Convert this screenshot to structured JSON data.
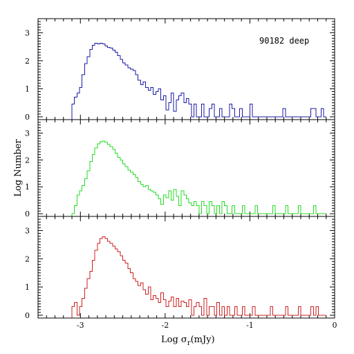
{
  "chart_data": {
    "type": "histogram",
    "annotation": "90182 deep",
    "xlabel": "Log σ",
    "xlabel_sub": "r",
    "xlabel_unit": "(mJy)",
    "ylabel": "Log Number",
    "xlim": [
      -3.5,
      0
    ],
    "ylim": [
      -0.1,
      3.5
    ],
    "grid": false,
    "x_ticks": [
      -3,
      -2,
      -1,
      0
    ],
    "y_ticks": [
      0,
      1,
      2,
      3
    ],
    "bin_edges": [
      -3.1,
      -3.07,
      -3.04,
      -3.01,
      -2.98,
      -2.95,
      -2.92,
      -2.89,
      -2.86,
      -2.83,
      -2.8,
      -2.77,
      -2.74,
      -2.71,
      -2.68,
      -2.65,
      -2.62,
      -2.59,
      -2.56,
      -2.53,
      -2.5,
      -2.47,
      -2.44,
      -2.41,
      -2.38,
      -2.35,
      -2.32,
      -2.29,
      -2.26,
      -2.23,
      -2.2,
      -2.17,
      -2.14,
      -2.11,
      -2.08,
      -2.05,
      -2.02,
      -1.99,
      -1.96,
      -1.93,
      -1.9,
      -1.87,
      -1.84,
      -1.81,
      -1.78,
      -1.75,
      -1.72,
      -1.69,
      -1.66,
      -1.63,
      -1.6,
      -1.57,
      -1.54,
      -1.51,
      -1.48,
      -1.45,
      -1.42,
      -1.39,
      -1.36,
      -1.33,
      -1.3,
      -1.27,
      -1.24,
      -1.21,
      -1.18,
      -1.15,
      -1.12,
      -1.09,
      -1.06,
      -1.03,
      -1.0,
      -0.97,
      -0.94,
      -0.91,
      -0.88,
      -0.85,
      -0.82,
      -0.79,
      -0.76,
      -0.73,
      -0.7,
      -0.67,
      -0.64,
      -0.61,
      -0.58,
      -0.55,
      -0.52,
      -0.49,
      -0.46,
      -0.43,
      -0.4,
      -0.37,
      -0.34,
      -0.31,
      -0.28,
      -0.25,
      -0.22,
      -0.19,
      -0.16,
      -0.13,
      -0.1,
      -0.07
    ],
    "panels": [
      {
        "color": "#1a1aa6",
        "values": [
          0.45,
          0.7,
          0.85,
          1.05,
          1.5,
          1.9,
          2.15,
          2.4,
          2.55,
          2.62,
          2.6,
          2.63,
          2.6,
          2.52,
          2.48,
          2.45,
          2.38,
          2.3,
          2.18,
          2.05,
          1.92,
          1.85,
          1.75,
          1.7,
          1.65,
          1.5,
          1.3,
          1.15,
          1.25,
          1.05,
          0.95,
          1.05,
          0.8,
          0.9,
          1.0,
          0.6,
          0.75,
          0.25,
          0.5,
          0.85,
          0.2,
          0.6,
          0.75,
          0.85,
          0.5,
          0.65,
          0.45,
          0.0,
          0.45,
          0.0,
          0.0,
          0.45,
          0.0,
          0.0,
          0.3,
          0.45,
          0.0,
          0.0,
          0.3,
          0.0,
          0.0,
          0.0,
          0.45,
          0.3,
          0.0,
          0.0,
          0.3,
          0.0,
          0.0,
          0.0,
          0.45,
          0.0,
          0.0,
          0.0,
          0.0,
          0.0,
          0.0,
          0.0,
          0.0,
          0.0,
          0.0,
          0.0,
          0.0,
          0.3,
          0.0,
          0.0,
          0.0,
          0.0,
          0.0,
          0.0,
          0.0,
          0.0,
          0.0,
          0.0,
          0.3,
          0.3,
          0.0,
          0.0,
          0.3,
          0.0
        ]
      },
      {
        "color": "#22dd22",
        "values": [
          0.0,
          0.3,
          0.7,
          0.85,
          1.05,
          1.3,
          1.6,
          1.95,
          2.2,
          2.45,
          2.6,
          2.68,
          2.7,
          2.65,
          2.58,
          2.5,
          2.4,
          2.25,
          2.1,
          2.0,
          1.85,
          1.75,
          1.62,
          1.55,
          1.45,
          1.35,
          1.2,
          1.1,
          1.0,
          1.05,
          0.9,
          0.85,
          0.8,
          0.7,
          0.55,
          0.35,
          0.7,
          0.6,
          0.85,
          0.5,
          0.9,
          0.65,
          0.3,
          0.85,
          0.7,
          0.55,
          0.4,
          0.3,
          0.45,
          0.3,
          0.0,
          0.45,
          0.3,
          0.0,
          0.45,
          0.3,
          0.0,
          0.3,
          0.0,
          0.45,
          0.3,
          0.0,
          0.0,
          0.3,
          0.0,
          0.0,
          0.0,
          0.3,
          0.0,
          0.0,
          0.0,
          0.0,
          0.3,
          0.0,
          0.0,
          0.0,
          0.0,
          0.0,
          0.0,
          0.3,
          0.0,
          0.0,
          0.0,
          0.0,
          0.3,
          0.0,
          0.0,
          0.0,
          0.0,
          0.3,
          0.0,
          0.0,
          0.0,
          0.0,
          0.0,
          0.3,
          0.0,
          0.0,
          0.0,
          0.0
        ]
      },
      {
        "color": "#cc1f1f",
        "values": [
          0.3,
          0.45,
          0.0,
          0.3,
          0.6,
          0.95,
          1.3,
          1.55,
          1.95,
          2.3,
          2.55,
          2.72,
          2.78,
          2.72,
          2.62,
          2.55,
          2.45,
          2.35,
          2.25,
          2.1,
          1.95,
          1.85,
          1.65,
          1.5,
          1.3,
          1.2,
          1.05,
          1.15,
          0.9,
          0.75,
          1.0,
          0.55,
          0.7,
          0.6,
          0.45,
          0.8,
          0.55,
          0.3,
          0.5,
          0.65,
          0.3,
          0.6,
          0.3,
          0.5,
          0.45,
          0.3,
          0.55,
          0.0,
          0.3,
          0.45,
          0.3,
          0.0,
          0.6,
          0.0,
          0.3,
          0.3,
          0.0,
          0.45,
          0.0,
          0.3,
          0.0,
          0.3,
          0.0,
          0.0,
          0.3,
          0.0,
          0.0,
          0.3,
          0.0,
          0.0,
          0.0,
          0.3,
          0.0,
          0.0,
          0.0,
          0.0,
          0.0,
          0.0,
          0.3,
          0.0,
          0.0,
          0.0,
          0.0,
          0.0,
          0.3,
          0.0,
          0.0,
          0.0,
          0.0,
          0.3,
          0.0,
          0.0,
          0.0,
          0.0,
          0.3,
          0.0,
          0.3,
          0.0,
          0.0,
          0.0
        ]
      }
    ]
  }
}
